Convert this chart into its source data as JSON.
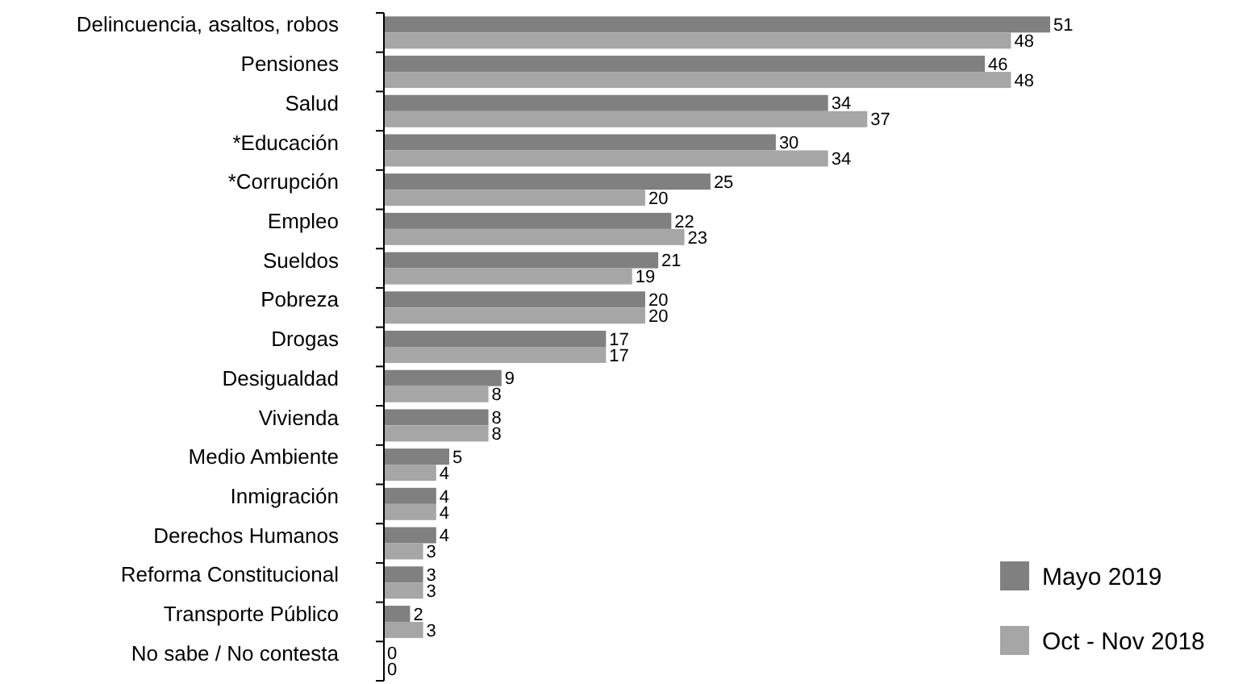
{
  "chart_data": {
    "type": "bar",
    "orientation": "horizontal",
    "data_labels": true,
    "legend": "bottom right",
    "categories": [
      "Delincuencia, asaltos, robos",
      "Pensiones",
      "Salud",
      "*Educación",
      "*Corrupción",
      "Empleo",
      "Sueldos",
      "Pobreza",
      "Drogas",
      "Desigualdad",
      "Vivienda",
      "Medio Ambiente",
      "Inmigración",
      "Derechos Humanos",
      "Reforma Constitucional",
      "Transporte Público",
      "No sabe / No contesta"
    ],
    "series": [
      {
        "name": "Mayo 2019",
        "color": "#808080",
        "values": [
          51,
          46,
          34,
          30,
          25,
          22,
          21,
          20,
          17,
          9,
          8,
          5,
          4,
          4,
          3,
          2,
          0
        ]
      },
      {
        "name": "Oct - Nov 2018",
        "color": "#a6a6a6",
        "values": [
          48,
          48,
          37,
          34,
          20,
          23,
          19,
          20,
          17,
          8,
          8,
          4,
          4,
          3,
          3,
          3,
          0
        ]
      }
    ]
  }
}
